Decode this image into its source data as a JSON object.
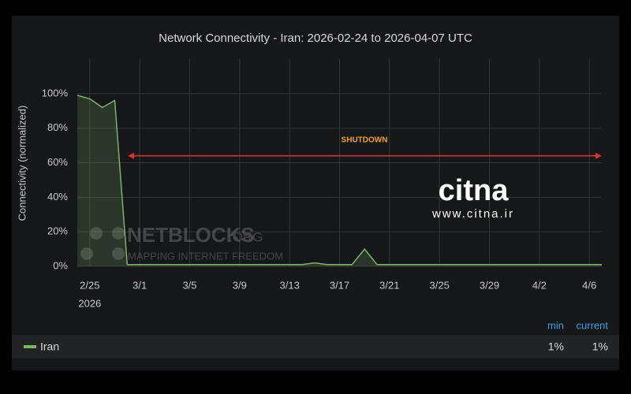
{
  "chart_data": {
    "type": "line",
    "title": "Network Connectivity - Iran: 2026-02-24 to 2026-04-07 UTC",
    "y_label": "Connectivity (normalized)",
    "x_year_label": "2026",
    "x": [
      "2026-02-24",
      "2026-02-25",
      "2026-02-26",
      "2026-02-27",
      "2026-02-28",
      "2026-03-01",
      "2026-03-02",
      "2026-03-03",
      "2026-03-04",
      "2026-03-05",
      "2026-03-06",
      "2026-03-07",
      "2026-03-08",
      "2026-03-09",
      "2026-03-10",
      "2026-03-11",
      "2026-03-12",
      "2026-03-13",
      "2026-03-14",
      "2026-03-15",
      "2026-03-16",
      "2026-03-17",
      "2026-03-18",
      "2026-03-19",
      "2026-03-20",
      "2026-03-21",
      "2026-03-22",
      "2026-03-23",
      "2026-03-24",
      "2026-03-25",
      "2026-03-26",
      "2026-03-27",
      "2026-03-28",
      "2026-03-29",
      "2026-03-30",
      "2026-03-31",
      "2026-04-01",
      "2026-04-02",
      "2026-04-03",
      "2026-04-04",
      "2026-04-05",
      "2026-04-06",
      "2026-04-07"
    ],
    "series": [
      {
        "name": "Iran",
        "color": "#7eb26d",
        "values": [
          99,
          97,
          92,
          96,
          1,
          1,
          1,
          1,
          1,
          1,
          1,
          1,
          1,
          1,
          1,
          1,
          1,
          1,
          1,
          2,
          1,
          1,
          1,
          10,
          1,
          1,
          1,
          1,
          1,
          1,
          1,
          1,
          1,
          1,
          1,
          1,
          1,
          1,
          1,
          1,
          1,
          1,
          1
        ]
      }
    ],
    "xlim": [
      "2026-02-24",
      "2026-04-07"
    ],
    "xticks": [
      {
        "value": "2026-02-25",
        "label": "2/25"
      },
      {
        "value": "2026-03-01",
        "label": "3/1"
      },
      {
        "value": "2026-03-05",
        "label": "3/5"
      },
      {
        "value": "2026-03-09",
        "label": "3/9"
      },
      {
        "value": "2026-03-13",
        "label": "3/13"
      },
      {
        "value": "2026-03-17",
        "label": "3/17"
      },
      {
        "value": "2026-03-21",
        "label": "3/21"
      },
      {
        "value": "2026-03-25",
        "label": "3/25"
      },
      {
        "value": "2026-03-29",
        "label": "3/29"
      },
      {
        "value": "2026-04-02",
        "label": "4/2"
      },
      {
        "value": "2026-04-06",
        "label": "4/6"
      }
    ],
    "ylim": [
      0,
      120
    ],
    "yticks": [
      {
        "value": 0,
        "label": "0%"
      },
      {
        "value": 20,
        "label": "20%"
      },
      {
        "value": 40,
        "label": "40%"
      },
      {
        "value": 60,
        "label": "60%"
      },
      {
        "value": 80,
        "label": "80%"
      },
      {
        "value": 100,
        "label": "100%"
      }
    ],
    "grid": true,
    "annotation": {
      "text": "SHUTDOWN",
      "y": 64
    },
    "legend_stats": [
      {
        "name": "min",
        "value": 1,
        "label": "1%"
      },
      {
        "name": "current",
        "value": 1,
        "label": "1%"
      }
    ],
    "watermarks": {
      "netblocks": "NETBLOCKS",
      "netblocks_suffix": ".ORG",
      "netblocks_tagline": "MAPPING INTERNET FREEDOM",
      "citna": "citna",
      "citna_url": "www.citna.ir"
    }
  }
}
